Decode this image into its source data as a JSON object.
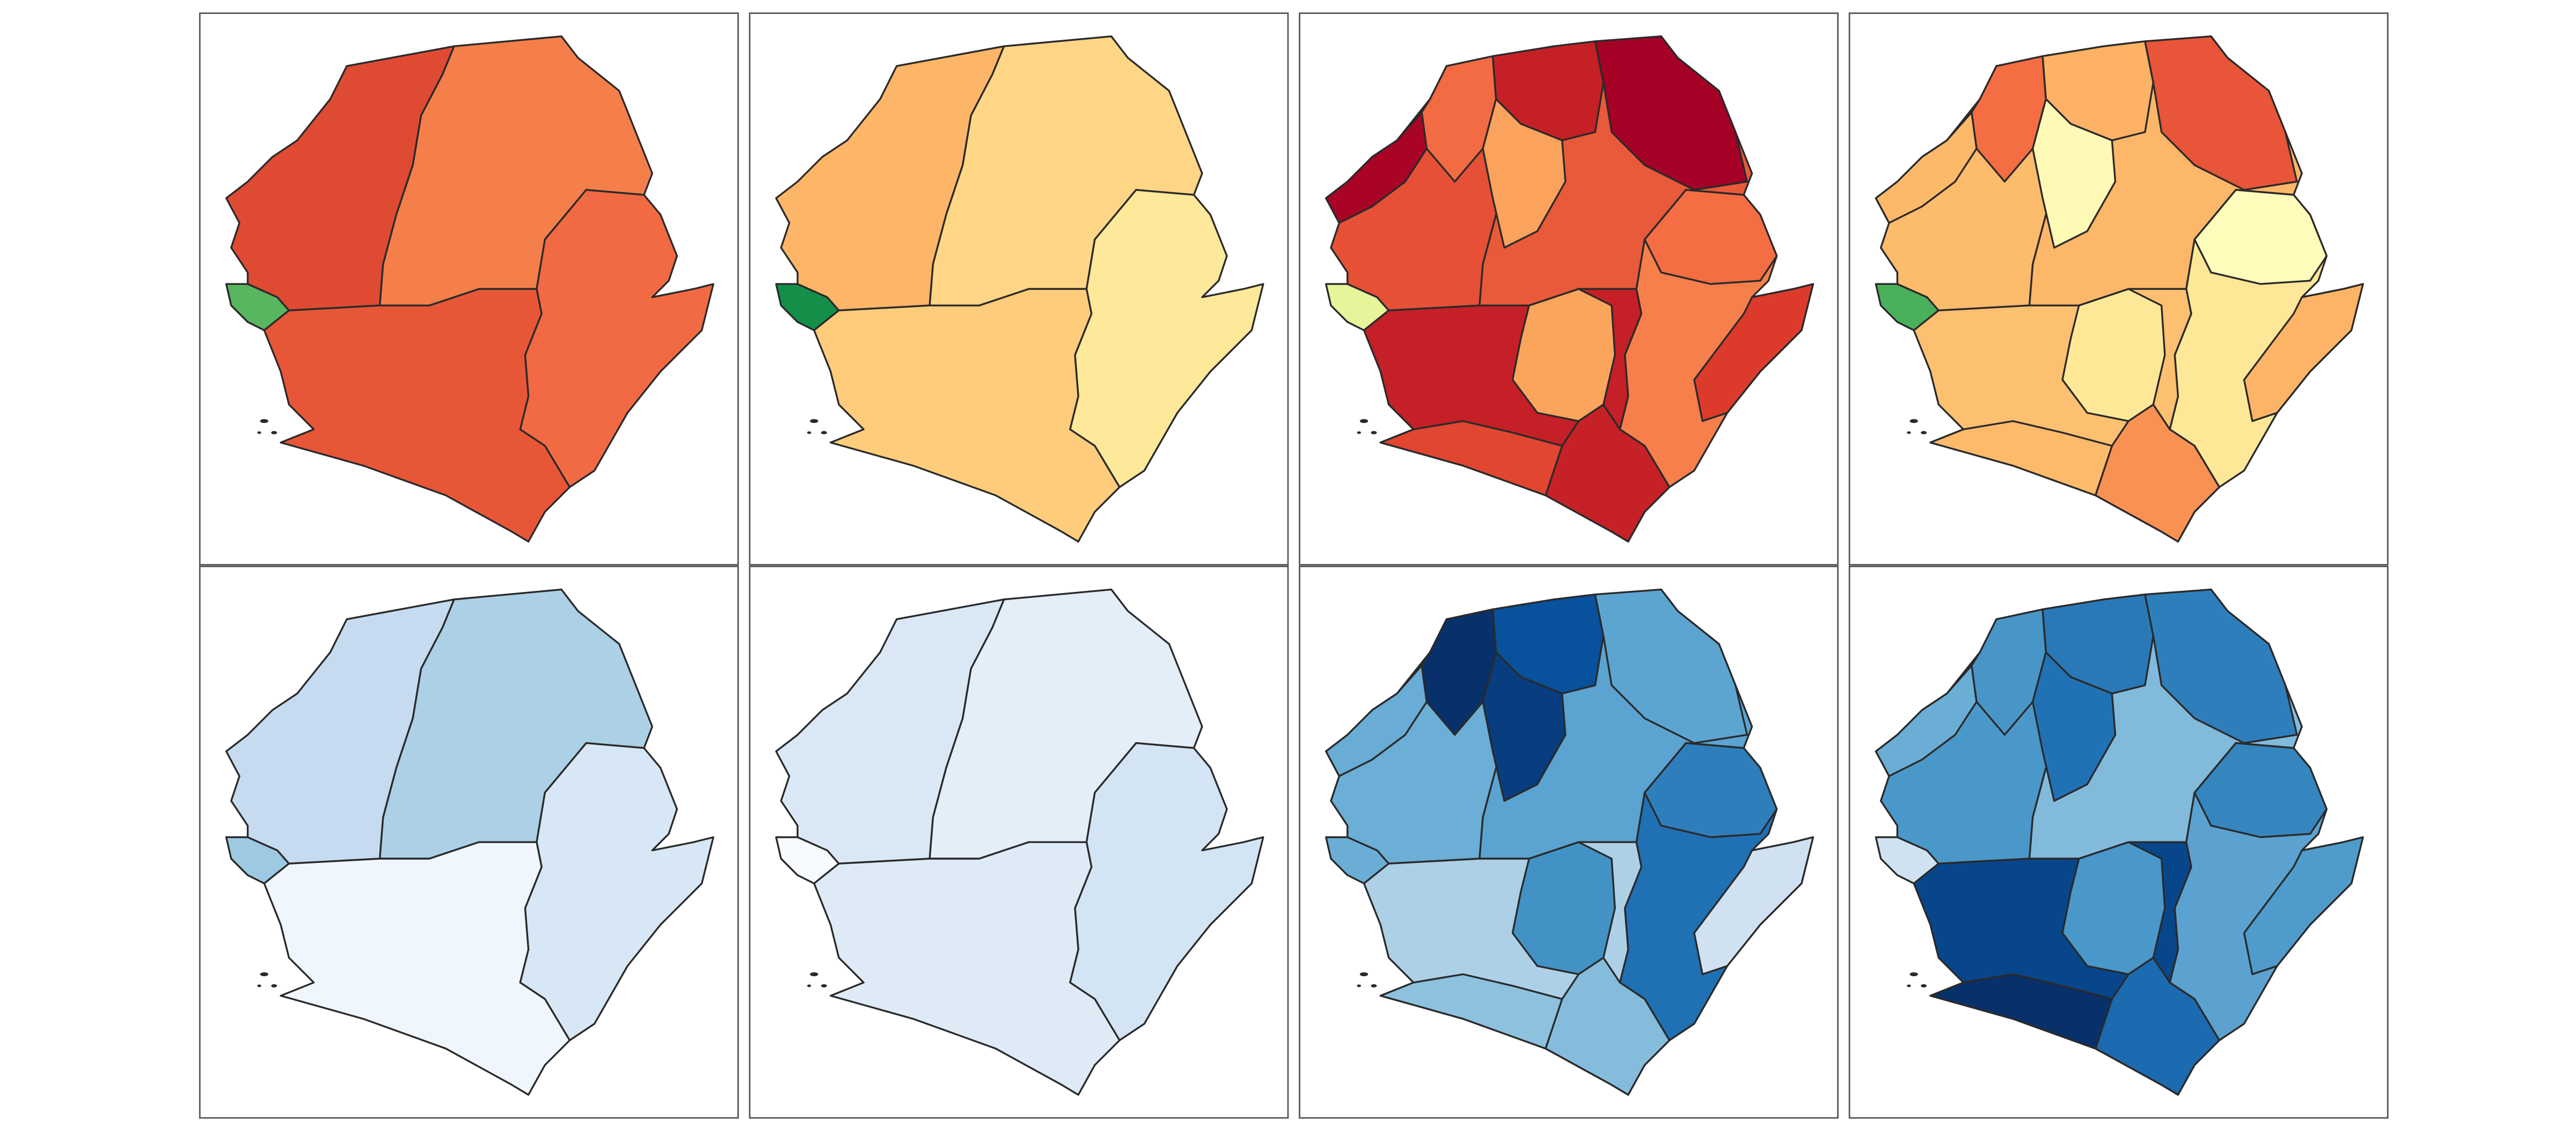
{
  "maps": [
    {
      "colors": [
        "#57b65f",
        "#df4a33",
        "#f57f4b",
        "#f26a44",
        "#e85638"
      ]
    },
    {
      "colors": [
        "#138f4a",
        "#fdb567",
        "#fed686",
        "#fee899",
        "#fecc7b"
      ]
    },
    {
      "colors": [
        "#e7f49a",
        "#e65036",
        "#a90426",
        "#f36b42",
        "#e85a3a",
        "#c62027",
        "#a50026",
        "#fba35c",
        "#f67f4b",
        "#f46d43",
        "#dc3b2c",
        "#c51f27",
        "#fba55c",
        "#c62127",
        "#e14631"
      ]
    },
    {
      "colors": [
        "#4bb05c",
        "#fdbb6c",
        "#fdb96a",
        "#f46d43",
        "#fdb768",
        "#fdb265",
        "#e95538",
        "#fefab6",
        "#fee797",
        "#fffbba",
        "#fdb466",
        "#fdc070",
        "#fee898",
        "#f99153",
        "#fdba6b"
      ]
    },
    {
      "colors": [
        "#9ec9e2",
        "#c6dbef",
        "#acd0e6",
        "#d8e7f5",
        "#f0f6fd"
      ]
    },
    {
      "colors": [
        "#f7fbff",
        "#dae8f6",
        "#e3eef9",
        "#d3e4f4",
        "#deebf7"
      ]
    },
    {
      "colors": [
        "#6aaed6",
        "#6baed6",
        "#69acd5",
        "#08306b",
        "#5ba3d0",
        "#08519c",
        "#5da5d1",
        "#083d7f",
        "#2070b4",
        "#2e7ebc",
        "#d0e1f2",
        "#add0e6",
        "#4292c6",
        "#85bcdc",
        "#8dc1dd"
      ]
    },
    {
      "colors": [
        "#d0e1f2",
        "#4a98c9",
        "#6aaed6",
        "#4896c8",
        "#82badb",
        "#2979b9",
        "#2f7ebc",
        "#2171b5",
        "#5ba2d0",
        "#3585bf",
        "#4f9bcb",
        "#08468b",
        "#4a98c9",
        "#1c6aaf",
        "#08306b"
      ]
    }
  ]
}
